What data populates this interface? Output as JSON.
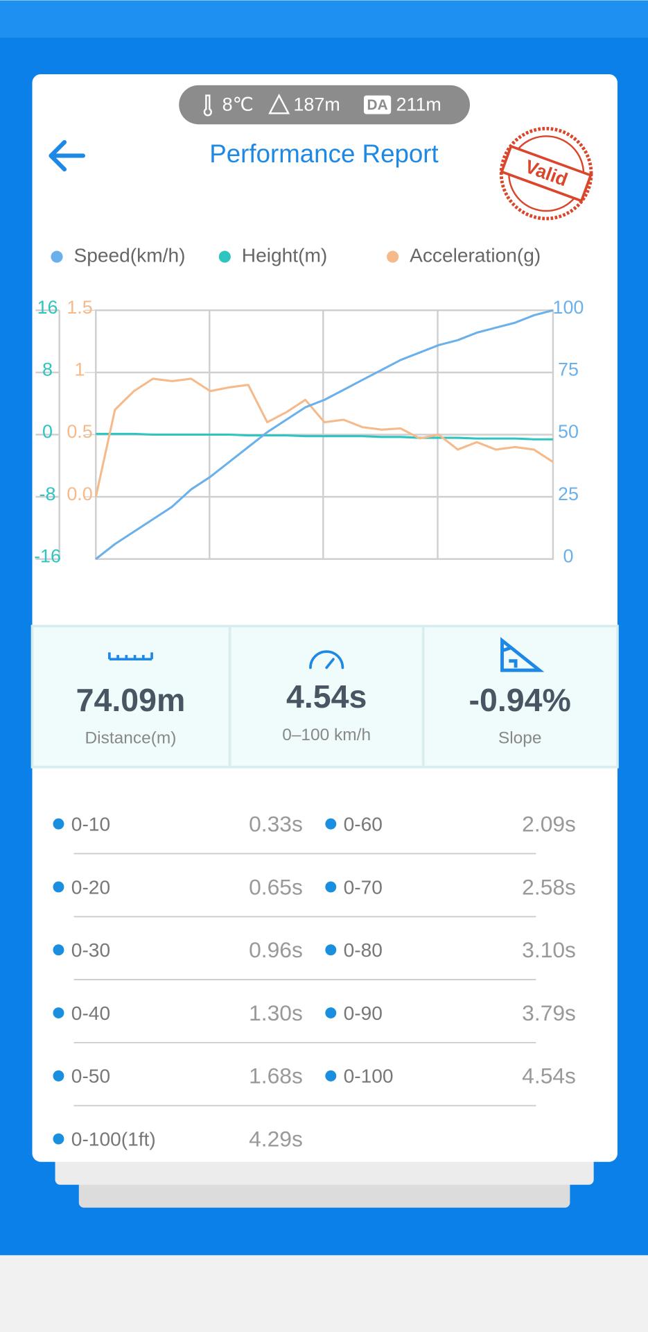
{
  "header": {
    "temperature": "8℃",
    "altitude": "187m",
    "density_altitude_tag": "DA",
    "density_altitude": "211m",
    "title": "Performance Report",
    "stamp": "Valid"
  },
  "chart_data": {
    "type": "line",
    "categories": [
      null,
      null,
      null,
      null,
      null,
      null,
      null,
      null,
      null,
      null,
      null,
      null,
      null,
      null,
      null,
      null,
      null,
      null,
      null,
      null,
      null,
      null,
      null,
      null,
      null
    ],
    "series": [
      {
        "name": "Speed(km/h)",
        "color": "#6ab0ea",
        "axis": "y2",
        "values": [
          0,
          6,
          11,
          16,
          21,
          28,
          33,
          39,
          45,
          51,
          56,
          61,
          64,
          68,
          72,
          76,
          80,
          83,
          86,
          88,
          91,
          93,
          95,
          98,
          100
        ]
      },
      {
        "name": "Height(m)",
        "color": "#2ec4c0",
        "axis": "y",
        "values": [
          0.1,
          0.1,
          0.1,
          0,
          0,
          0,
          0,
          0,
          -0.1,
          -0.1,
          -0.1,
          -0.2,
          -0.2,
          -0.2,
          -0.2,
          -0.3,
          -0.3,
          -0.4,
          -0.4,
          -0.4,
          -0.5,
          -0.5,
          -0.5,
          -0.6,
          -0.6
        ]
      },
      {
        "name": "Acceleration(g)",
        "color": "#f6b98a",
        "axis": "y3",
        "values": [
          0.0,
          0.7,
          0.85,
          0.95,
          0.93,
          0.95,
          0.85,
          0.88,
          0.9,
          0.6,
          0.68,
          0.78,
          0.6,
          0.62,
          0.56,
          0.54,
          0.55,
          0.47,
          0.5,
          0.38,
          0.44,
          0.38,
          0.4,
          0.38,
          0.28
        ]
      }
    ],
    "ylim": [
      -16,
      16
    ],
    "yticks": [
      -16,
      -8,
      0,
      8,
      16
    ],
    "y2lim": [
      0,
      100
    ],
    "y2ticks": [
      0,
      25,
      50,
      75,
      100
    ],
    "y3lim": [
      -0.5,
      1.5
    ],
    "y3ticks": [
      {
        "value": 0,
        "label": "0.0"
      },
      0.5,
      1,
      1.5
    ],
    "grid": true
  },
  "stats": [
    {
      "value": "74.09m",
      "label": "Distance(m)"
    },
    {
      "value": "4.54s",
      "label": "0–100 km/h"
    },
    {
      "value": "-0.94%",
      "label": "Slope"
    }
  ],
  "splits": [
    {
      "label": "0-10",
      "time": "0.33s"
    },
    {
      "label": "0-20",
      "time": "0.65s"
    },
    {
      "label": "0-30",
      "time": "0.96s"
    },
    {
      "label": "0-40",
      "time": "1.30s"
    },
    {
      "label": "0-50",
      "time": "1.68s"
    },
    {
      "label": "0-60",
      "time": "2.09s"
    },
    {
      "label": "0-70",
      "time": "2.58s"
    },
    {
      "label": "0-80",
      "time": "3.10s"
    },
    {
      "label": "0-90",
      "time": "3.79s"
    },
    {
      "label": "0-100",
      "time": "4.54s"
    },
    {
      "label": "0-100(1ft)",
      "time": "4.29s"
    }
  ]
}
